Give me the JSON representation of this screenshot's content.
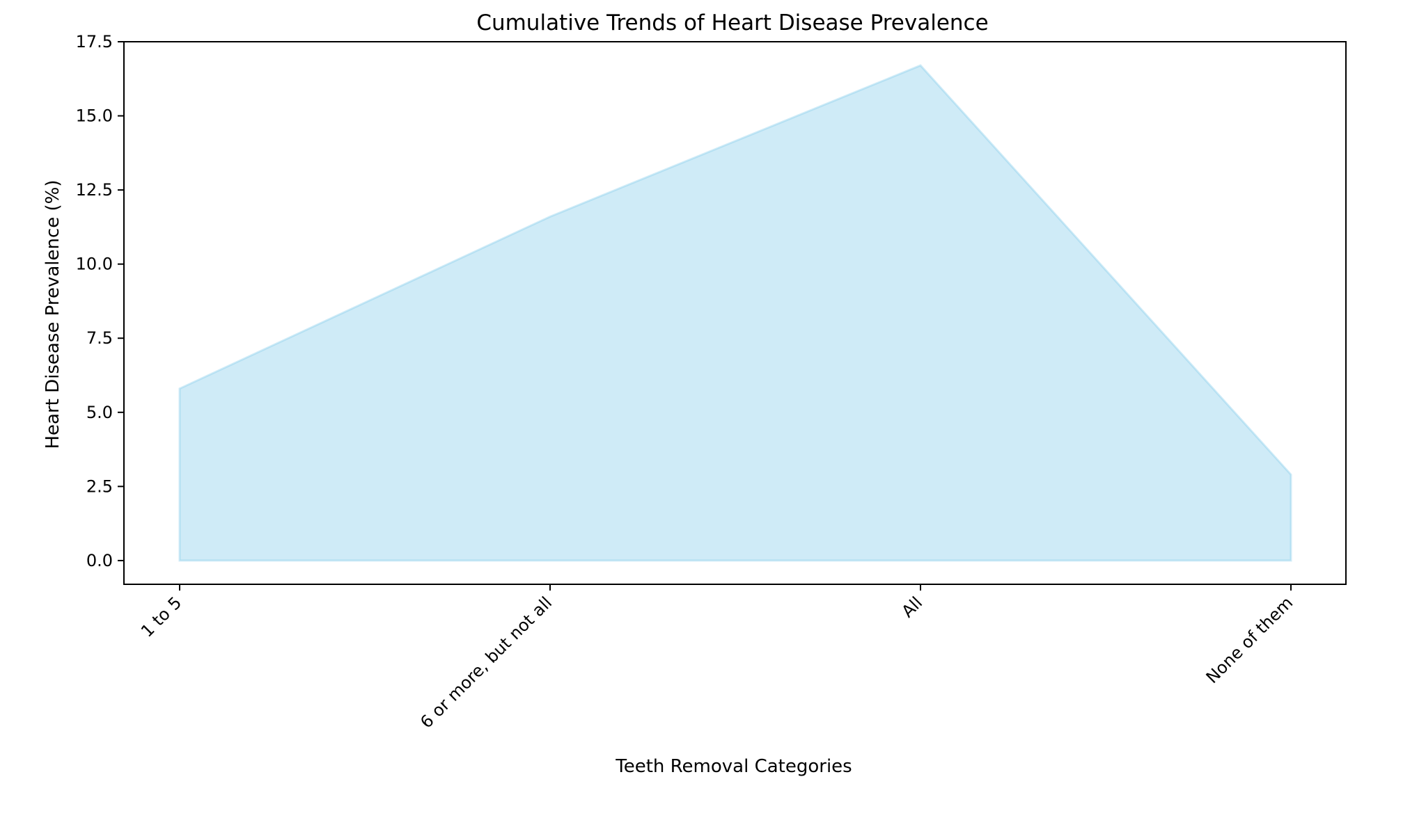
{
  "chart_data": {
    "type": "area",
    "title": "Cumulative Trends of Heart Disease Prevalence",
    "xlabel": "Teeth Removal Categories",
    "ylabel": "Heart Disease Prevalence (%)",
    "categories": [
      "1 to 5",
      "6 or more, but not all",
      "All",
      "None of them"
    ],
    "series": [
      {
        "values": [
          5.8,
          11.6,
          16.7,
          2.9
        ],
        "color": "#87ceeb"
      }
    ],
    "ylim": [
      -0.8,
      17.5
    ],
    "yticks": [
      0.0,
      2.5,
      5.0,
      7.5,
      10.0,
      12.5,
      15.0,
      17.5
    ],
    "ytick_labels": [
      "0.0",
      "2.5",
      "5.0",
      "7.5",
      "10.0",
      "12.5",
      "15.0",
      "17.5"
    ],
    "grid": false,
    "legend": "none"
  }
}
